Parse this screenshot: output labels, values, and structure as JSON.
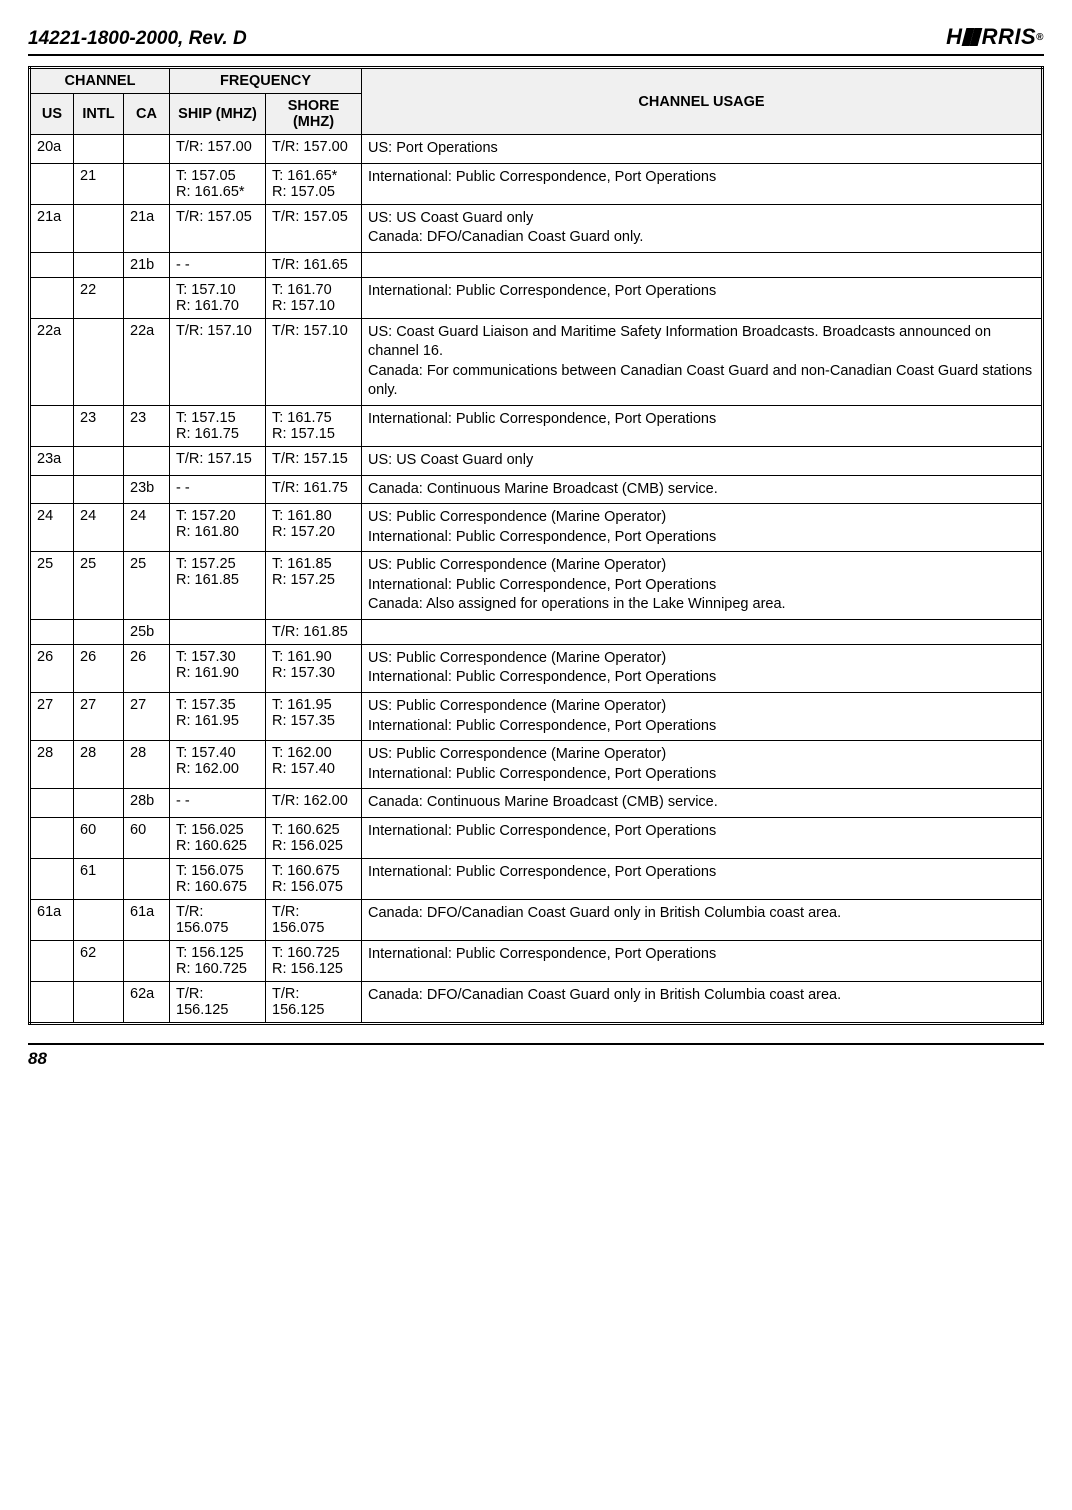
{
  "header": {
    "doc_id": "14221-1800-2000, Rev. D",
    "logo_text_left": "H",
    "logo_text_right": "RRIS",
    "logo_reg": "®"
  },
  "footer": {
    "page": "88"
  },
  "table": {
    "head": {
      "channel": "CHANNEL",
      "frequency": "FREQUENCY",
      "usage": "CHANNEL USAGE",
      "us": "US",
      "intl": "INTL",
      "ca": "CA",
      "ship": "SHIP (MHZ)",
      "shore": "SHORE (MHZ)"
    },
    "rows": [
      {
        "us": "20a",
        "intl": "",
        "ca": "",
        "ship": "T/R: 157.00",
        "shore": "T/R: 157.00",
        "usage": "US: Port Operations"
      },
      {
        "us": "",
        "intl": "21",
        "ca": "",
        "ship": "T: 157.05\nR: 161.65*",
        "shore": "T: 161.65*\nR: 157.05",
        "usage": "International: Public Correspondence, Port Operations"
      },
      {
        "us": "21a",
        "intl": "",
        "ca": "21a",
        "ship": "T/R: 157.05",
        "shore": "T/R: 157.05",
        "usage": "US: US Coast Guard only\nCanada: DFO/Canadian Coast Guard only."
      },
      {
        "us": "",
        "intl": "",
        "ca": "21b",
        "ship": "- -",
        "shore": "T/R: 161.65",
        "usage": ""
      },
      {
        "us": "",
        "intl": "22",
        "ca": "",
        "ship": "T: 157.10\nR: 161.70",
        "shore": "T: 161.70\nR: 157.10",
        "usage": "International: Public Correspondence, Port Operations"
      },
      {
        "us": "22a",
        "intl": "",
        "ca": "22a",
        "ship": "T/R: 157.10",
        "shore": "T/R: 157.10",
        "usage": "US: Coast Guard Liaison and Maritime Safety Information Broadcasts. Broadcasts announced on channel 16.\nCanada: For communications between Canadian Coast Guard and non-Canadian Coast Guard stations only."
      },
      {
        "us": "",
        "intl": "23",
        "ca": "23",
        "ship": "T: 157.15\nR: 161.75",
        "shore": "T: 161.75\nR: 157.15",
        "usage": "International: Public Correspondence, Port Operations"
      },
      {
        "us": "23a",
        "intl": "",
        "ca": "",
        "ship": "T/R: 157.15",
        "shore": "T/R: 157.15",
        "usage": "US: US Coast Guard only"
      },
      {
        "us": "",
        "intl": "",
        "ca": "23b",
        "ship": "- -",
        "shore": "T/R: 161.75",
        "usage": "Canada: Continuous Marine Broadcast (CMB) service."
      },
      {
        "us": "24",
        "intl": "24",
        "ca": "24",
        "ship": "T: 157.20\nR: 161.80",
        "shore": "T: 161.80\nR: 157.20",
        "usage": "US: Public Correspondence (Marine Operator)\nInternational: Public Correspondence, Port Operations"
      },
      {
        "us": "25",
        "intl": "25",
        "ca": "25",
        "ship": "T: 157.25\nR: 161.85",
        "shore": "T: 161.85\nR: 157.25",
        "usage": "US: Public Correspondence (Marine Operator)\nInternational: Public Correspondence, Port Operations\nCanada: Also assigned for operations in the Lake Winnipeg area."
      },
      {
        "us": "",
        "intl": "",
        "ca": "25b",
        "ship": "",
        "shore": "T/R: 161.85",
        "usage": ""
      },
      {
        "us": "26",
        "intl": "26",
        "ca": "26",
        "ship": "T: 157.30\nR: 161.90",
        "shore": "T: 161.90\nR: 157.30",
        "usage": "US: Public Correspondence (Marine Operator)\nInternational: Public Correspondence, Port Operations"
      },
      {
        "us": "27",
        "intl": "27",
        "ca": "27",
        "ship": "T: 157.35\nR: 161.95",
        "shore": "T: 161.95\nR: 157.35",
        "usage": "US: Public Correspondence (Marine Operator)\nInternational: Public Correspondence, Port Operations"
      },
      {
        "us": "28",
        "intl": "28",
        "ca": "28",
        "ship": "T: 157.40\nR: 162.00",
        "shore": "T: 162.00\nR: 157.40",
        "usage": "US: Public Correspondence (Marine Operator)\nInternational: Public Correspondence, Port Operations"
      },
      {
        "us": "",
        "intl": "",
        "ca": "28b",
        "ship": "- -",
        "shore": "T/R: 162.00",
        "usage": "Canada: Continuous Marine Broadcast (CMB) service."
      },
      {
        "us": "",
        "intl": "60",
        "ca": "60",
        "ship": "T: 156.025\nR: 160.625",
        "shore": "T: 160.625\nR: 156.025",
        "usage": "International: Public Correspondence, Port Operations"
      },
      {
        "us": "",
        "intl": "61",
        "ca": "",
        "ship": "T: 156.075\nR: 160.675",
        "shore": "T: 160.675\nR: 156.075",
        "usage": "International: Public Correspondence, Port Operations"
      },
      {
        "us": "61a",
        "intl": "",
        "ca": "61a",
        "ship": "T/R: 156.075",
        "shore": "T/R: 156.075",
        "usage": "Canada: DFO/Canadian Coast Guard only in British Columbia coast area."
      },
      {
        "us": "",
        "intl": "62",
        "ca": "",
        "ship": "T: 156.125\nR: 160.725",
        "shore": "T: 160.725\nR: 156.125",
        "usage": "International: Public Correspondence, Port Operations"
      },
      {
        "us": "",
        "intl": "",
        "ca": "62a",
        "ship": "T/R: 156.125",
        "shore": "T/R: 156.125",
        "usage": "Canada: DFO/Canadian Coast Guard only in British Columbia coast area."
      }
    ]
  }
}
